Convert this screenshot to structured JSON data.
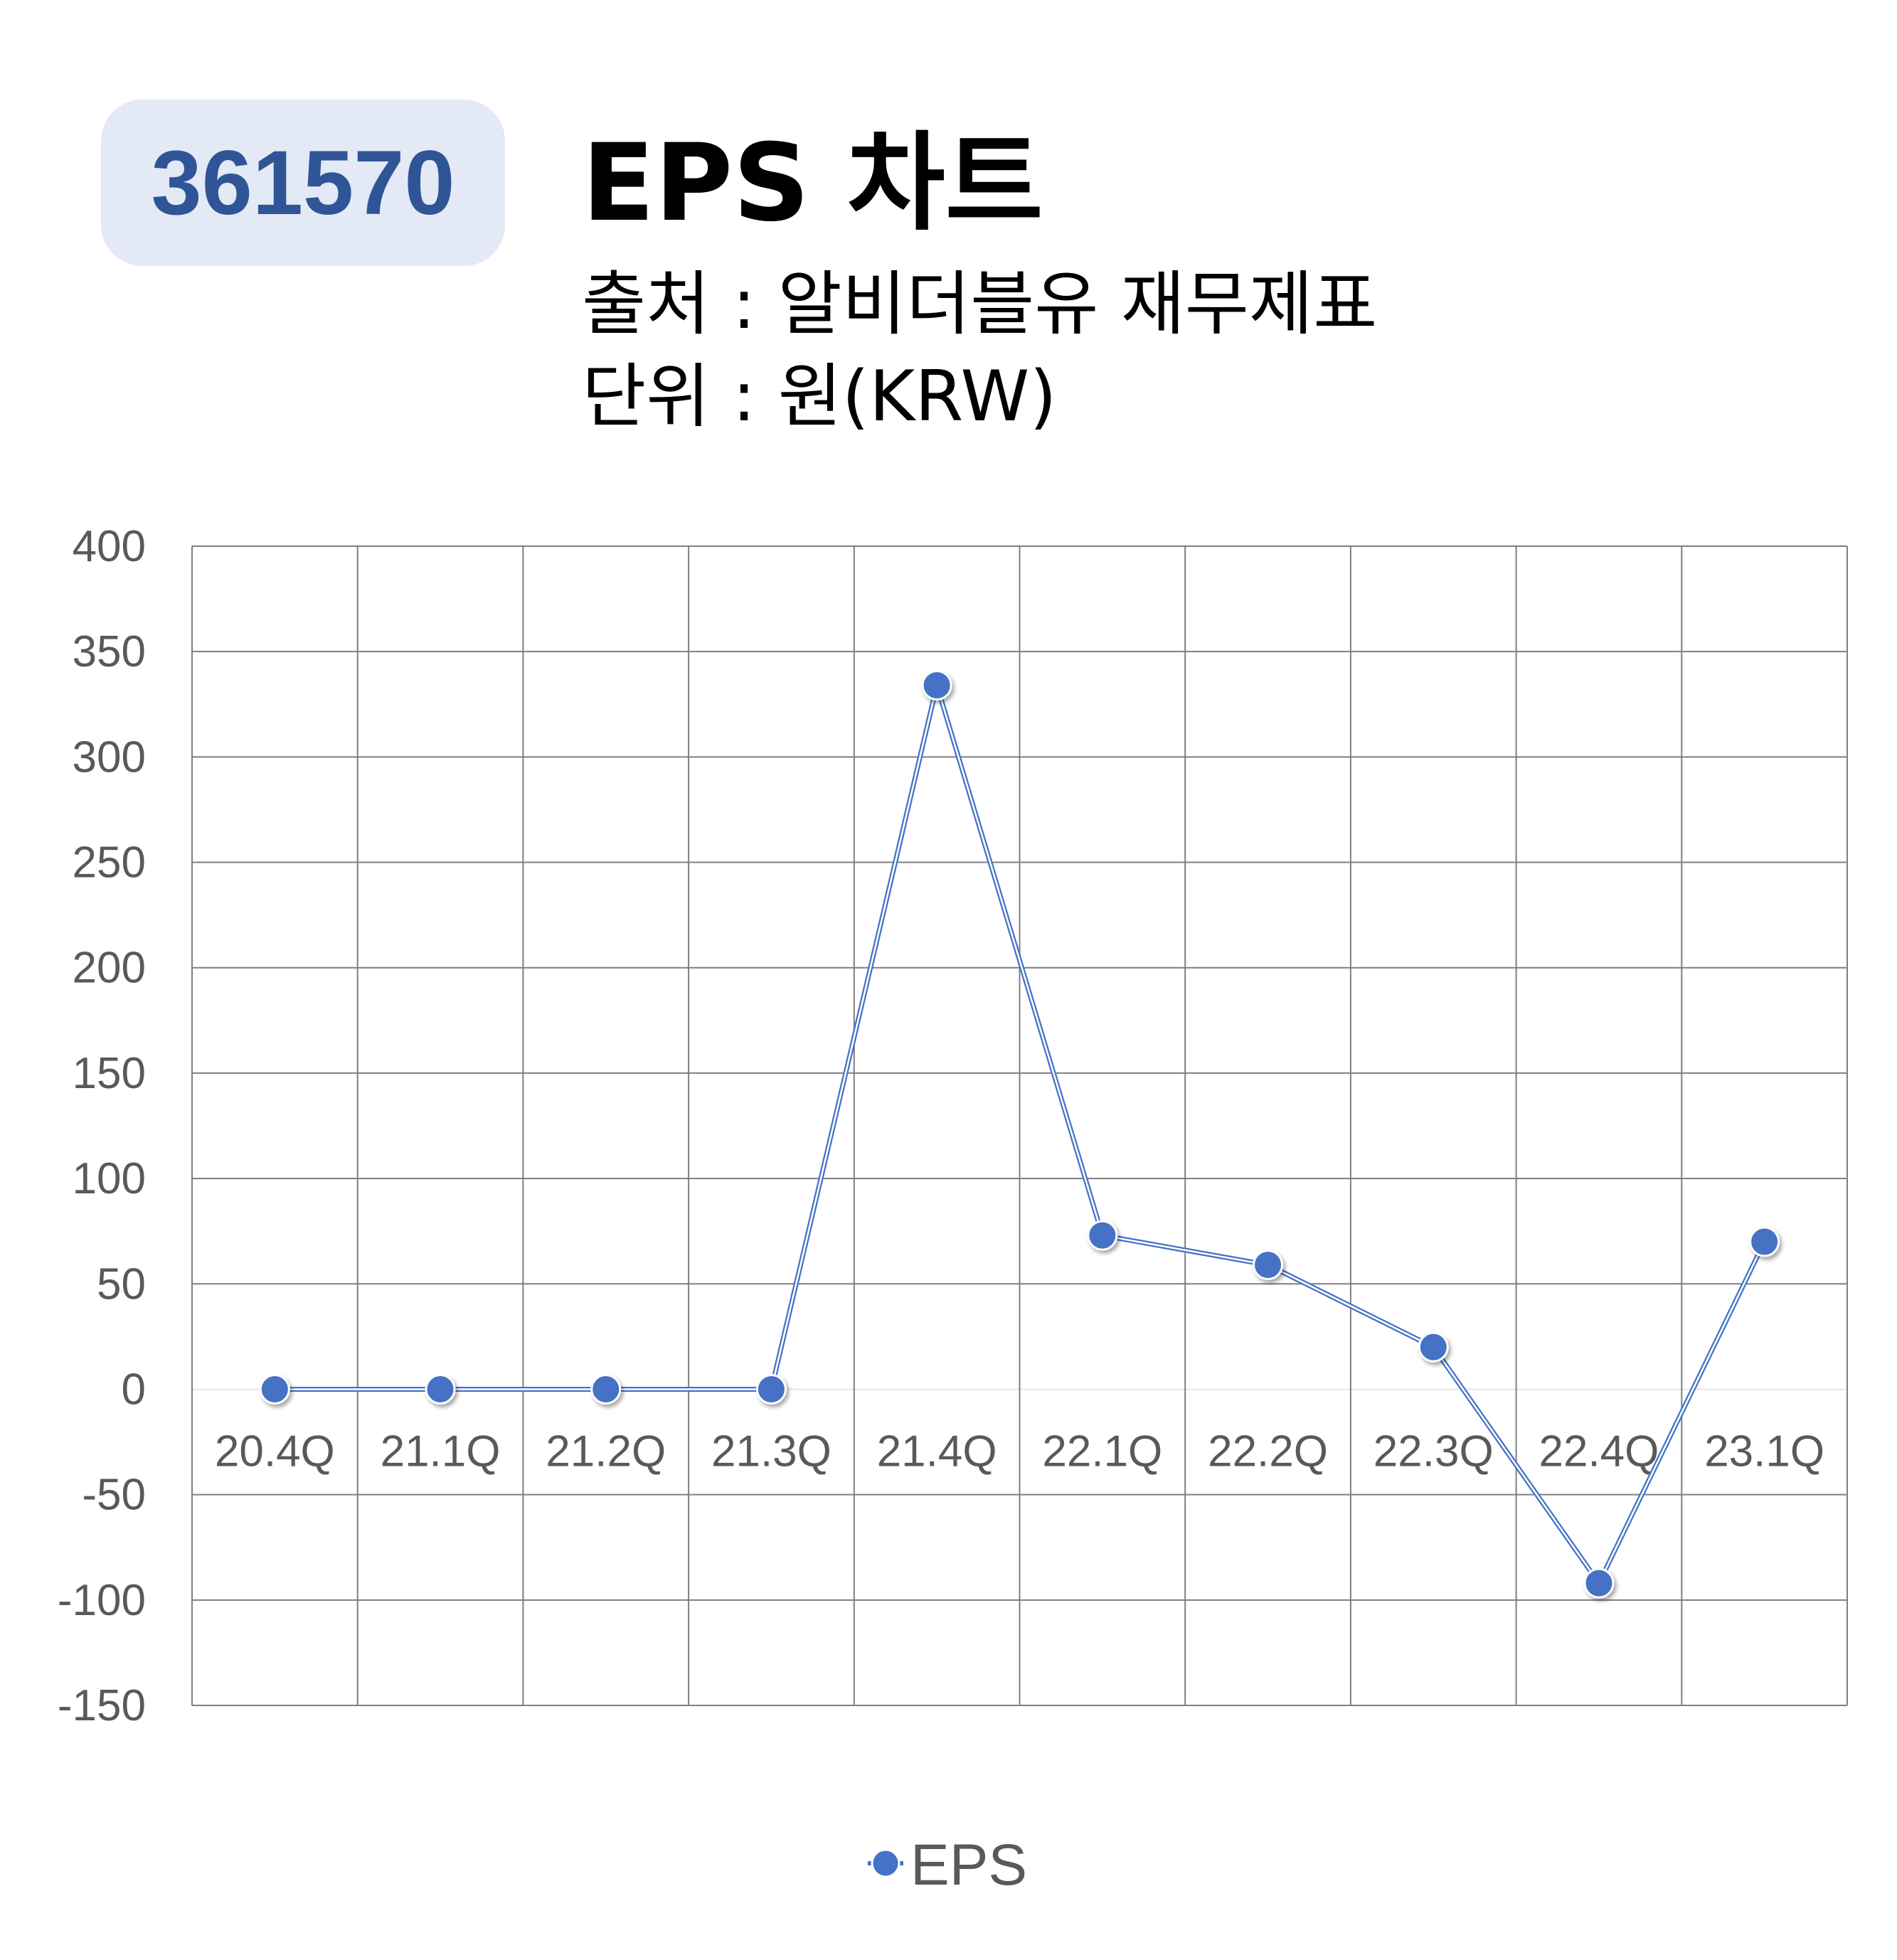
{
  "header": {
    "code": "361570",
    "title": "EPS 차트",
    "source": "출처 : 알비더블유 재무제표",
    "unit": "단위 : 원(KRW)"
  },
  "colors": {
    "accent": "#4472c4",
    "badge_bg": "#e3e9f5",
    "badge_text": "#2f5597",
    "grid": "#7f7f7f",
    "tick_text": "#595959"
  },
  "chart_data": {
    "type": "line",
    "categories": [
      "20.4Q",
      "21.1Q",
      "21.2Q",
      "21.3Q",
      "21.4Q",
      "22.1Q",
      "22.2Q",
      "22.3Q",
      "22.4Q",
      "23.1Q"
    ],
    "series": [
      {
        "name": "EPS",
        "values": [
          0,
          0,
          0,
          0,
          334,
          73,
          59,
          20,
          -92,
          70
        ]
      }
    ],
    "yticks": [
      400,
      350,
      300,
      250,
      200,
      150,
      100,
      50,
      0,
      -50,
      -100,
      -150
    ],
    "ylim": [
      -150,
      400
    ],
    "grid": true,
    "legend": "bottom-center"
  }
}
